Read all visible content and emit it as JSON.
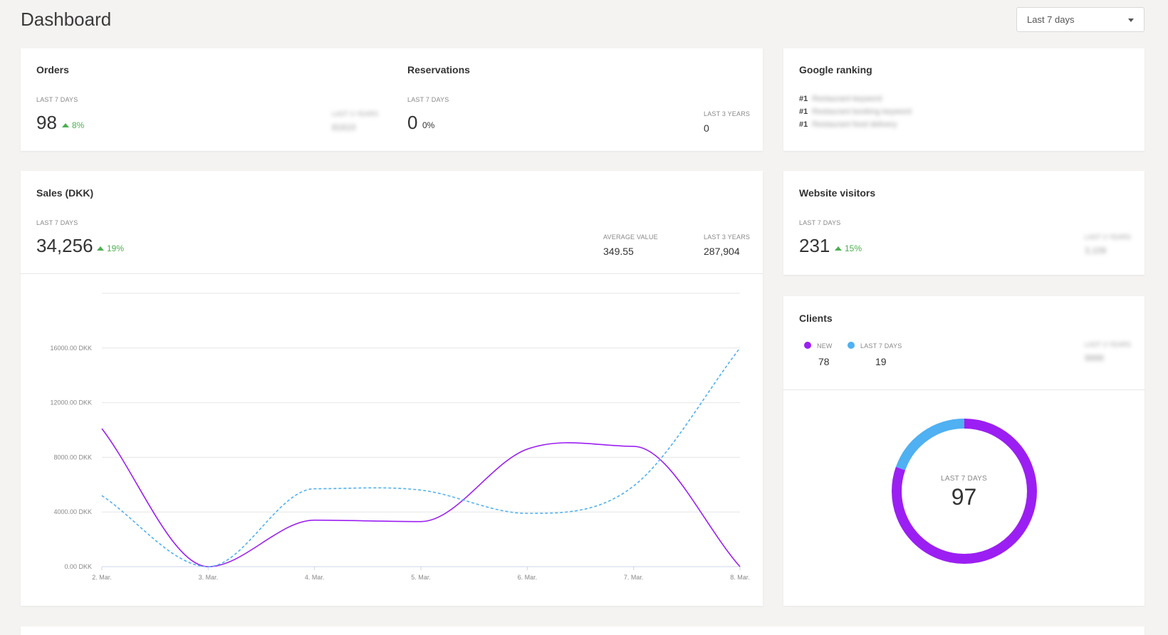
{
  "page": {
    "title": "Dashboard"
  },
  "period_select": {
    "value": "Last 7 days"
  },
  "orders": {
    "title": "Orders",
    "caption": "LAST 7 DAYS",
    "value": "98",
    "delta": "8%",
    "side_caption": "LAST 3 YEARS",
    "side_value": "81610"
  },
  "reservations": {
    "title": "Reservations",
    "caption": "LAST 7 DAYS",
    "value": "0",
    "delta": "0%",
    "side_caption": "LAST 3 YEARS",
    "side_value": "0"
  },
  "google_ranking": {
    "title": "Google ranking",
    "rows": [
      {
        "rank": "#1",
        "text": "Restaurant keyword"
      },
      {
        "rank": "#1",
        "text": "Restaurant booking keyword"
      },
      {
        "rank": "#1",
        "text": "Restaurant food delivery"
      }
    ]
  },
  "sales": {
    "title": "Sales (DKK)",
    "caption": "LAST 7 DAYS",
    "value": "34,256",
    "delta": "19%",
    "avg_caption": "AVERAGE VALUE",
    "avg_value": "349.55",
    "total_caption": "LAST 3 YEARS",
    "total_value": "287,904"
  },
  "website_visitors": {
    "title": "Website visitors",
    "caption": "LAST 7 DAYS",
    "value": "231",
    "delta": "15%",
    "side_caption": "LAST 3 YEARS",
    "side_value": "3,109"
  },
  "clients": {
    "title": "Clients",
    "new_label": "NEW",
    "new_value": "78",
    "last7_label": "LAST 7 DAYS",
    "last7_value": "19",
    "side_caption": "LAST 3 YEARS",
    "side_value": "9999",
    "donut_caption": "LAST 7 DAYS",
    "donut_value": "97",
    "donut_segments": [
      {
        "label": "NEW",
        "value": 78,
        "color": "#9b1ff2"
      },
      {
        "label": "LAST 7 DAYS",
        "value": 19,
        "color": "#4fb0f2"
      }
    ]
  },
  "colors": {
    "purple": "#9b1ff2",
    "blue": "#4fb0f2",
    "green": "#4caf50"
  },
  "chart_data": {
    "type": "line",
    "x": [
      "2. Mar.",
      "3. Mar.",
      "4. Mar.",
      "5. Mar.",
      "6. Mar.",
      "7. Mar.",
      "8. Mar."
    ],
    "y_ticks": [
      "0.00 DKK",
      "4000.00 DKK",
      "8000.00 DKK",
      "12000.00 DKK",
      "16000.00 DKK"
    ],
    "ylim": [
      0,
      20000
    ],
    "grid": true,
    "series": [
      {
        "color": "#9b1ff2",
        "style": "solid",
        "values": [
          10100,
          0,
          3400,
          3300,
          8600,
          8800,
          0
        ]
      },
      {
        "color": "#4fb0f2",
        "style": "dashed",
        "values": [
          5200,
          0,
          5700,
          5600,
          3900,
          5900,
          16000
        ]
      }
    ]
  }
}
